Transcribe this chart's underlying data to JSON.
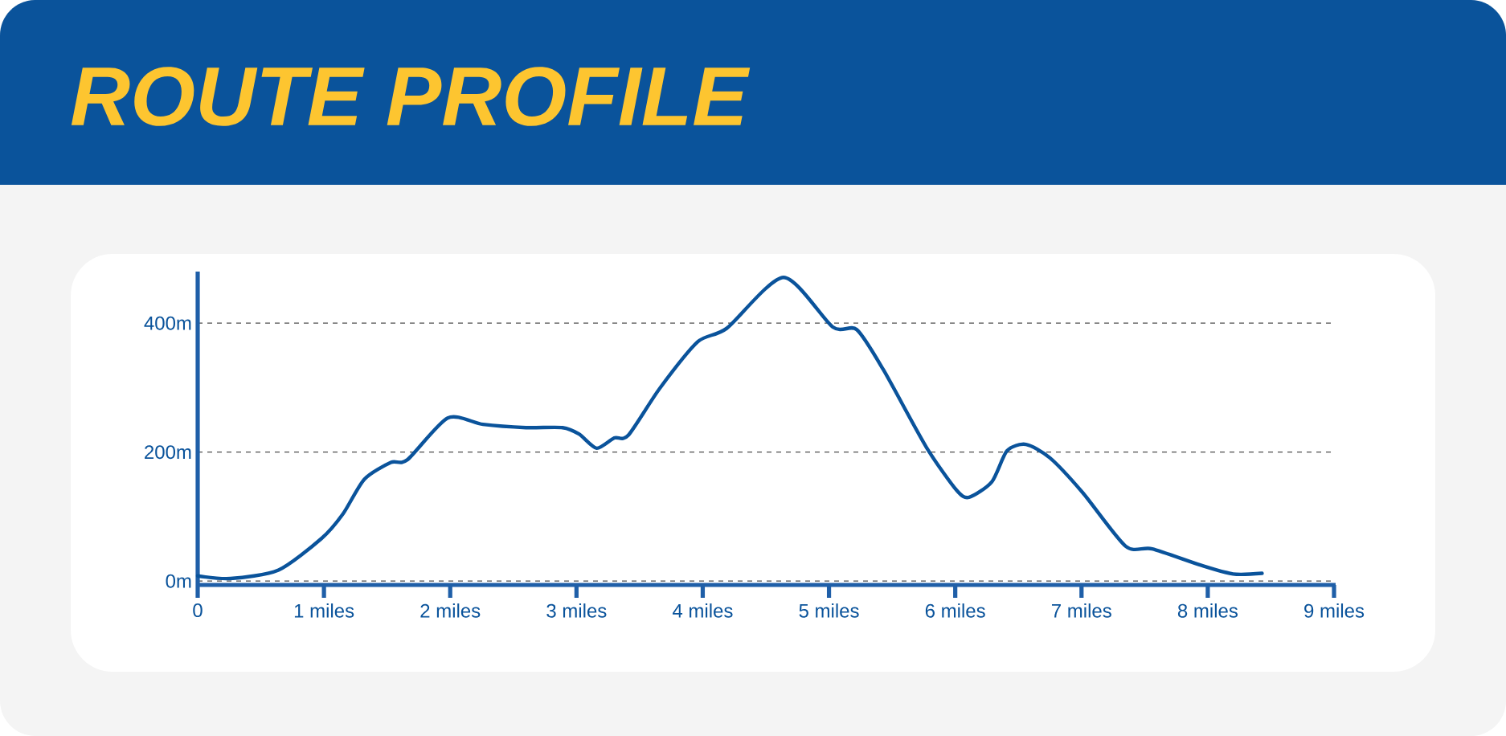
{
  "chart_data": {
    "type": "line",
    "title": "ROUTE PROFILE",
    "color": "#0a539b",
    "line_style": "solid",
    "marker": "none",
    "grid": "y",
    "x": [
      0,
      0.26,
      0.64,
      0.98,
      1.15,
      1.32,
      1.53,
      1.66,
      1.98,
      2.26,
      2.6,
      2.89,
      3.02,
      3.16,
      3.3,
      3.41,
      3.66,
      3.96,
      4.19,
      4.64,
      5.03,
      5.22,
      5.43,
      5.77,
      6.01,
      6.11,
      6.29,
      6.41,
      6.56,
      6.75,
      7.01,
      7.35,
      7.56,
      7.94,
      8.2,
      8.43
    ],
    "values": [
      8,
      4,
      17,
      66,
      104,
      158,
      184,
      188,
      253,
      243,
      238,
      238,
      228,
      206,
      222,
      226,
      299,
      371,
      392,
      471,
      394,
      390,
      328,
      208,
      141,
      130,
      154,
      202,
      212,
      191,
      137,
      54,
      50,
      25,
      11,
      12
    ],
    "xlim": [
      0,
      9
    ],
    "xticks": [
      0,
      {
        "value": 1,
        "label": "1 miles"
      },
      {
        "value": 2,
        "label": "2 miles"
      },
      {
        "value": 3,
        "label": "3 miles"
      },
      {
        "value": 4,
        "label": "4 miles"
      },
      {
        "value": 5,
        "label": "5 miles"
      },
      {
        "value": 6,
        "label": "6 miles"
      },
      {
        "value": 7,
        "label": "7 miles"
      },
      {
        "value": 8,
        "label": "8 miles"
      },
      {
        "value": 9,
        "label": "9 miles"
      }
    ],
    "ylim": [
      -6,
      480
    ],
    "yticks": [
      {
        "value": 0,
        "label": "0m"
      },
      {
        "value": 200,
        "label": "200m"
      },
      {
        "value": 400,
        "label": "400m"
      }
    ]
  }
}
